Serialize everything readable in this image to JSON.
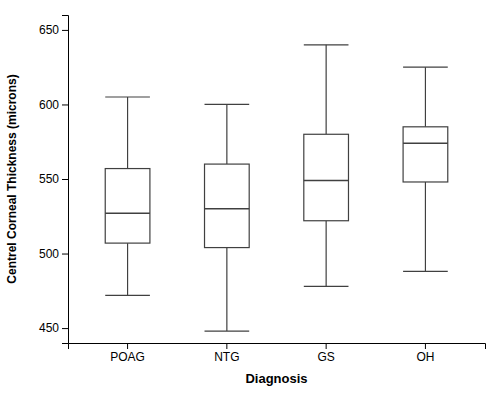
{
  "chart_data": {
    "type": "box",
    "categories": [
      "POAG",
      "NTG",
      "GS",
      "OH"
    ],
    "boxes": [
      {
        "whisker_min": 472,
        "q1": 507,
        "median": 527,
        "q3": 557,
        "whisker_max": 605
      },
      {
        "whisker_min": 448,
        "q1": 504,
        "median": 530,
        "q3": 560,
        "whisker_max": 600
      },
      {
        "whisker_min": 478,
        "q1": 522,
        "median": 549,
        "q3": 580,
        "whisker_max": 640
      },
      {
        "whisker_min": 488,
        "q1": 548,
        "median": 574,
        "q3": 585,
        "whisker_max": 625
      }
    ],
    "xlabel": "Diagnosis",
    "ylabel": "Centrel Corneal Thickness (microns)",
    "ylim": [
      440,
      660
    ],
    "yticks": [
      450,
      500,
      550,
      600,
      650
    ],
    "color": "#404040"
  }
}
